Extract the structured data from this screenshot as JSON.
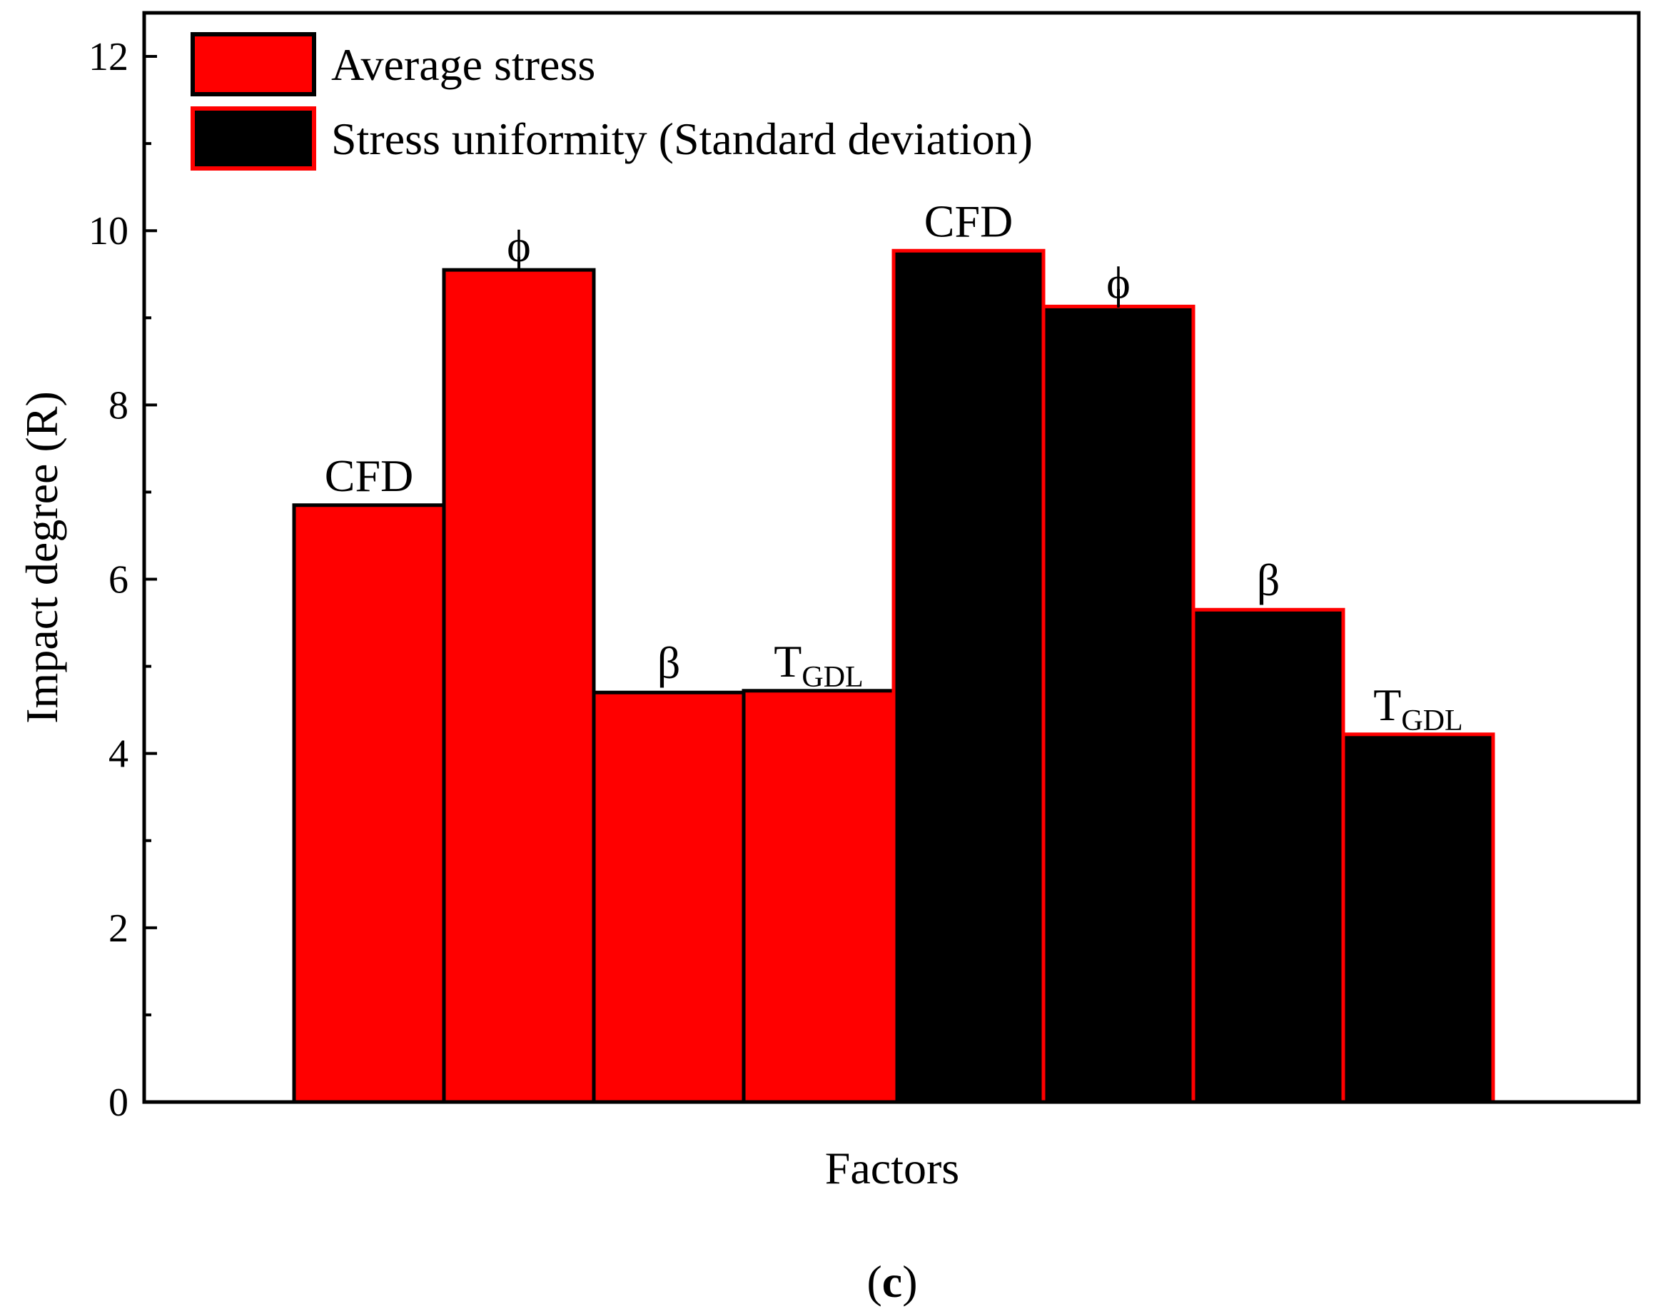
{
  "chart_data": {
    "type": "bar",
    "title": "",
    "xlabel": "Factors",
    "ylabel": "Impact degree (R)",
    "ylim": [
      0,
      12.5
    ],
    "yticks": [
      0,
      2,
      4,
      6,
      8,
      10,
      12
    ],
    "grid": false,
    "legend_position": "top-left",
    "panel_label": {
      "open": "(",
      "letter": "c",
      "close": ")"
    },
    "series": [
      {
        "name": "Average stress",
        "fill": "#ff0000",
        "edge": "#000000",
        "bars": [
          {
            "factor": "CFD",
            "sub": "",
            "value": 6.85,
            "error": 0
          },
          {
            "factor": "ϕ",
            "sub": "",
            "value": 9.55,
            "error": 0.15
          },
          {
            "factor": "β",
            "sub": "",
            "value": 4.7,
            "error": 0
          },
          {
            "factor": "T",
            "sub": "GDL",
            "value": 4.72,
            "error": 0
          }
        ]
      },
      {
        "name": "Stress uniformity (Standard deviation)",
        "fill": "#000000",
        "edge": "#ff0000",
        "bars": [
          {
            "factor": "CFD",
            "sub": "",
            "value": 9.77,
            "error": 0
          },
          {
            "factor": "ϕ",
            "sub": "",
            "value": 9.13,
            "error": 0.2
          },
          {
            "factor": "β",
            "sub": "",
            "value": 5.65,
            "error": 0
          },
          {
            "factor": "T",
            "sub": "GDL",
            "value": 4.22,
            "error": 0
          }
        ]
      }
    ]
  }
}
